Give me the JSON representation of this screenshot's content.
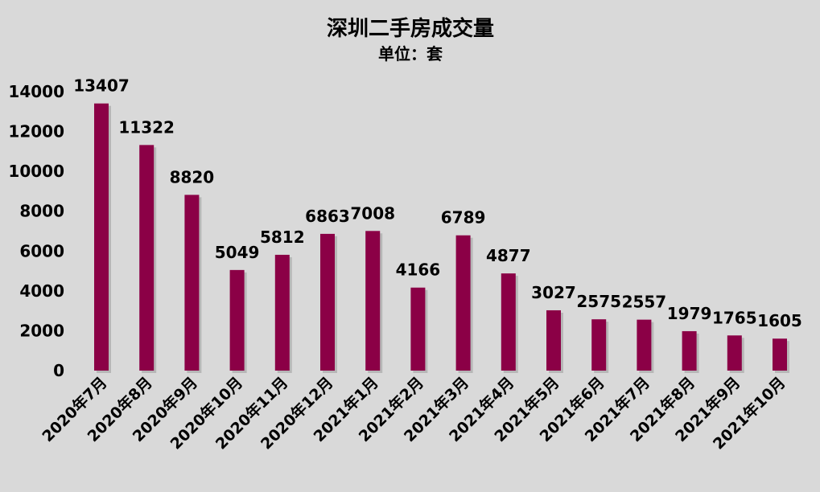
{
  "chart_data": {
    "type": "bar",
    "title": "深圳二手房成交量",
    "subtitle": "单位：套",
    "categories": [
      "2020年7月",
      "2020年8月",
      "2020年9月",
      "2020年10月",
      "2020年11月",
      "2020年12月",
      "2021年1月",
      "2021年2月",
      "2021年3月",
      "2021年4月",
      "2021年5月",
      "2021年6月",
      "2021年7月",
      "2021年8月",
      "2021年9月",
      "2021年10月"
    ],
    "values": [
      13407,
      11322,
      8820,
      5049,
      5812,
      6863,
      7008,
      4166,
      6789,
      4877,
      3027,
      2575,
      2557,
      1979,
      1765,
      1605
    ],
    "yticks": [
      "0",
      "2000",
      "4000",
      "6000",
      "8000",
      "10000",
      "12000",
      "14000"
    ],
    "ylim": [
      0,
      14000
    ],
    "grid": false,
    "bar_color": "#8b0046",
    "background_color": "#d9d9d9"
  }
}
